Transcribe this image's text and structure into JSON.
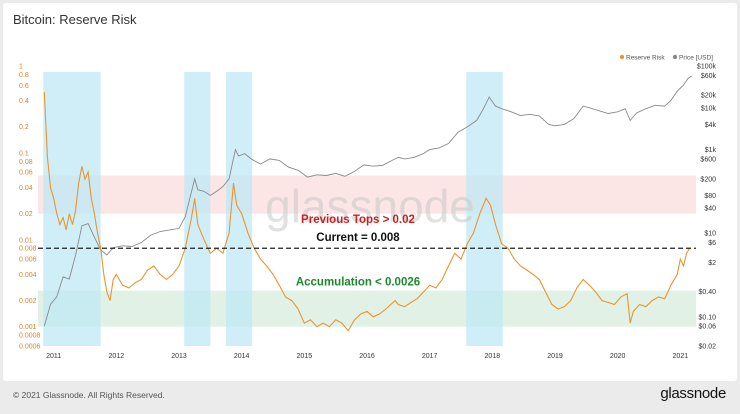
{
  "header": {
    "title": "Bitcoin: Reserve Risk"
  },
  "footer": {
    "copyright": "© 2021 Glassnode. All Rights Reserved.",
    "brand": "glassnode"
  },
  "watermark": "glassnode",
  "colors": {
    "reserve_risk": "#e8962e",
    "price": "#8a8a8a",
    "highlight": "#bfe8f6",
    "top_band": "#f9dcdc",
    "accum_band": "#dcefe2",
    "annotation_tops": "#cc1f1f",
    "annotation_current": "#111111",
    "annotation_accum": "#1e8a2e"
  },
  "chart_data": {
    "type": "line",
    "title": "Bitcoin: Reserve Risk",
    "legend": {
      "placement": "top-right",
      "entries": [
        "Reserve Risk",
        "Price [USD]"
      ]
    },
    "x_ticks": [
      "2011",
      "2012",
      "2013",
      "2014",
      "2015",
      "2016",
      "2017",
      "2018",
      "2019",
      "2020",
      "2021"
    ],
    "left_axis": {
      "scale": "log",
      "range": [
        0.0006,
        1
      ],
      "ticks": [
        "1",
        "0.8",
        "0.6",
        "0.4",
        "0.2",
        "0.1",
        "0.08",
        "0.06",
        "0.04",
        "0.02",
        "0.01",
        "0.008",
        "0.006",
        "0.004",
        "0.002",
        "0.001",
        "0.0008",
        "0.0006"
      ]
    },
    "right_axis": {
      "scale": "log",
      "range": [
        0.02,
        100000
      ],
      "ticks": [
        "$100k",
        "$60k",
        "$20k",
        "$10k",
        "$4k",
        "$1k",
        "$600",
        "$200",
        "$80",
        "$40",
        "$10",
        "$6",
        "$2",
        "$0.40",
        "$0.10",
        "$0.06",
        "$0.02"
      ]
    },
    "bands": {
      "previous_tops": [
        0.02,
        0.055
      ],
      "accumulation": [
        0.001,
        0.0026
      ],
      "current_level": 0.008
    },
    "highlight_periods": [
      [
        "2010-11",
        "2011-10"
      ],
      [
        "2013-02",
        "2013-07"
      ],
      [
        "2013-10",
        "2014-03"
      ],
      [
        "2017-08",
        "2018-03"
      ]
    ],
    "annotations": {
      "previous_tops": "Previous Tops > 0.02",
      "current": "Current = 0.008",
      "accumulation": "Accumulation < 0.0026"
    },
    "series": [
      {
        "name": "Reserve Risk",
        "axis": "left",
        "points": [
          [
            "2010.85",
            0.5
          ],
          [
            "2010.90",
            0.09
          ],
          [
            "2010.95",
            0.04
          ],
          [
            "2011.00",
            0.03
          ],
          [
            "2011.05",
            0.02
          ],
          [
            "2011.10",
            0.015
          ],
          [
            "2011.15",
            0.018
          ],
          [
            "2011.20",
            0.013
          ],
          [
            "2011.25",
            0.02
          ],
          [
            "2011.30",
            0.015
          ],
          [
            "2011.35",
            0.022
          ],
          [
            "2011.40",
            0.045
          ],
          [
            "2011.45",
            0.07
          ],
          [
            "2011.50",
            0.05
          ],
          [
            "2011.55",
            0.06
          ],
          [
            "2011.60",
            0.03
          ],
          [
            "2011.65",
            0.02
          ],
          [
            "2011.70",
            0.012
          ],
          [
            "2011.75",
            0.008
          ],
          [
            "2011.80",
            0.004
          ],
          [
            "2011.85",
            0.0025
          ],
          [
            "2011.90",
            0.002
          ],
          [
            "2011.95",
            0.0035
          ],
          [
            "2012.00",
            0.004
          ],
          [
            "2012.10",
            0.003
          ],
          [
            "2012.20",
            0.0028
          ],
          [
            "2012.30",
            0.0032
          ],
          [
            "2012.40",
            0.0035
          ],
          [
            "2012.50",
            0.0045
          ],
          [
            "2012.60",
            0.005
          ],
          [
            "2012.70",
            0.004
          ],
          [
            "2012.80",
            0.0035
          ],
          [
            "2012.90",
            0.004
          ],
          [
            "2013.00",
            0.005
          ],
          [
            "2013.10",
            0.008
          ],
          [
            "2013.20",
            0.018
          ],
          [
            "2013.25",
            0.03
          ],
          [
            "2013.30",
            0.015
          ],
          [
            "2013.40",
            0.01
          ],
          [
            "2013.50",
            0.007
          ],
          [
            "2013.60",
            0.008
          ],
          [
            "2013.70",
            0.007
          ],
          [
            "2013.80",
            0.012
          ],
          [
            "2013.87",
            0.045
          ],
          [
            "2013.92",
            0.025
          ],
          [
            "2014.00",
            0.02
          ],
          [
            "2014.10",
            0.012
          ],
          [
            "2014.20",
            0.008
          ],
          [
            "2014.30",
            0.006
          ],
          [
            "2014.40",
            0.005
          ],
          [
            "2014.50",
            0.004
          ],
          [
            "2014.60",
            0.003
          ],
          [
            "2014.70",
            0.0022
          ],
          [
            "2014.80",
            0.002
          ],
          [
            "2014.90",
            0.0016
          ],
          [
            "2015.00",
            0.0011
          ],
          [
            "2015.10",
            0.0012
          ],
          [
            "2015.20",
            0.001
          ],
          [
            "2015.30",
            0.0011
          ],
          [
            "2015.40",
            0.001
          ],
          [
            "2015.50",
            0.0012
          ],
          [
            "2015.60",
            0.0011
          ],
          [
            "2015.70",
            0.0009
          ],
          [
            "2015.80",
            0.0012
          ],
          [
            "2015.90",
            0.0014
          ],
          [
            "2016.00",
            0.0015
          ],
          [
            "2016.10",
            0.0013
          ],
          [
            "2016.20",
            0.0014
          ],
          [
            "2016.30",
            0.0016
          ],
          [
            "2016.45",
            0.002
          ],
          [
            "2016.50",
            0.0018
          ],
          [
            "2016.60",
            0.0017
          ],
          [
            "2016.70",
            0.0019
          ],
          [
            "2016.80",
            0.0021
          ],
          [
            "2016.90",
            0.0025
          ],
          [
            "2017.00",
            0.003
          ],
          [
            "2017.10",
            0.0028
          ],
          [
            "2017.20",
            0.0035
          ],
          [
            "2017.30",
            0.005
          ],
          [
            "2017.40",
            0.007
          ],
          [
            "2017.50",
            0.006
          ],
          [
            "2017.60",
            0.009
          ],
          [
            "2017.70",
            0.012
          ],
          [
            "2017.80",
            0.02
          ],
          [
            "2017.90",
            0.03
          ],
          [
            "2017.97",
            0.025
          ],
          [
            "2018.05",
            0.015
          ],
          [
            "2018.15",
            0.009
          ],
          [
            "2018.25",
            0.008
          ],
          [
            "2018.35",
            0.006
          ],
          [
            "2018.45",
            0.005
          ],
          [
            "2018.55",
            0.0045
          ],
          [
            "2018.65",
            0.004
          ],
          [
            "2018.75",
            0.0035
          ],
          [
            "2018.85",
            0.0025
          ],
          [
            "2018.95",
            0.0018
          ],
          [
            "2019.05",
            0.0016
          ],
          [
            "2019.15",
            0.0017
          ],
          [
            "2019.25",
            0.002
          ],
          [
            "2019.35",
            0.0028
          ],
          [
            "2019.45",
            0.0035
          ],
          [
            "2019.55",
            0.003
          ],
          [
            "2019.65",
            0.0025
          ],
          [
            "2019.75",
            0.002
          ],
          [
            "2019.85",
            0.0019
          ],
          [
            "2019.95",
            0.0018
          ],
          [
            "2020.05",
            0.0022
          ],
          [
            "2020.15",
            0.0024
          ],
          [
            "2020.20",
            0.0011
          ],
          [
            "2020.25",
            0.0015
          ],
          [
            "2020.35",
            0.0018
          ],
          [
            "2020.45",
            0.0017
          ],
          [
            "2020.55",
            0.002
          ],
          [
            "2020.65",
            0.0022
          ],
          [
            "2020.75",
            0.0021
          ],
          [
            "2020.85",
            0.003
          ],
          [
            "2020.95",
            0.004
          ],
          [
            "2021.00",
            0.006
          ],
          [
            "2021.05",
            0.005
          ],
          [
            "2021.10",
            0.007
          ],
          [
            "2021.15",
            0.008
          ]
        ]
      },
      {
        "name": "Price [USD]",
        "axis": "right",
        "points": [
          [
            "2010.85",
            0.06
          ],
          [
            "2010.95",
            0.2
          ],
          [
            "2011.05",
            0.3
          ],
          [
            "2011.15",
            0.9
          ],
          [
            "2011.25",
            0.8
          ],
          [
            "2011.35",
            3
          ],
          [
            "2011.45",
            15
          ],
          [
            "2011.55",
            17
          ],
          [
            "2011.65",
            8
          ],
          [
            "2011.75",
            4
          ],
          [
            "2011.85",
            3
          ],
          [
            "2011.95",
            4.5
          ],
          [
            "2012.10",
            5
          ],
          [
            "2012.25",
            4.8
          ],
          [
            "2012.40",
            6
          ],
          [
            "2012.55",
            9
          ],
          [
            "2012.70",
            11
          ],
          [
            "2012.85",
            12
          ],
          [
            "2013.00",
            13
          ],
          [
            "2013.10",
            25
          ],
          [
            "2013.25",
            200
          ],
          [
            "2013.30",
            110
          ],
          [
            "2013.40",
            100
          ],
          [
            "2013.50",
            80
          ],
          [
            "2013.60",
            100
          ],
          [
            "2013.70",
            130
          ],
          [
            "2013.80",
            200
          ],
          [
            "2013.90",
            1000
          ],
          [
            "2013.95",
            700
          ],
          [
            "2014.05",
            800
          ],
          [
            "2014.15",
            600
          ],
          [
            "2014.30",
            450
          ],
          [
            "2014.45",
            600
          ],
          [
            "2014.60",
            550
          ],
          [
            "2014.75",
            380
          ],
          [
            "2014.90",
            320
          ],
          [
            "2015.05",
            220
          ],
          [
            "2015.20",
            250
          ],
          [
            "2015.35",
            240
          ],
          [
            "2015.50",
            270
          ],
          [
            "2015.65",
            230
          ],
          [
            "2015.80",
            300
          ],
          [
            "2015.95",
            430
          ],
          [
            "2016.10",
            400
          ],
          [
            "2016.25",
            420
          ],
          [
            "2016.40",
            550
          ],
          [
            "2016.50",
            650
          ],
          [
            "2016.60",
            600
          ],
          [
            "2016.75",
            650
          ],
          [
            "2016.90",
            800
          ],
          [
            "2017.00",
            1000
          ],
          [
            "2017.15",
            1100
          ],
          [
            "2017.30",
            1400
          ],
          [
            "2017.45",
            2600
          ],
          [
            "2017.60",
            3500
          ],
          [
            "2017.75",
            5000
          ],
          [
            "2017.85",
            9000
          ],
          [
            "2017.95",
            18000
          ],
          [
            "2018.05",
            11000
          ],
          [
            "2018.15",
            9500
          ],
          [
            "2018.30",
            8000
          ],
          [
            "2018.45",
            6500
          ],
          [
            "2018.60",
            7000
          ],
          [
            "2018.75",
            6400
          ],
          [
            "2018.90",
            4000
          ],
          [
            "2019.00",
            3700
          ],
          [
            "2019.15",
            4000
          ],
          [
            "2019.30",
            5500
          ],
          [
            "2019.45",
            11000
          ],
          [
            "2019.55",
            10000
          ],
          [
            "2019.70",
            8500
          ],
          [
            "2019.85",
            7300
          ],
          [
            "2020.00",
            8000
          ],
          [
            "2020.12",
            9500
          ],
          [
            "2020.20",
            5000
          ],
          [
            "2020.30",
            7500
          ],
          [
            "2020.45",
            9500
          ],
          [
            "2020.60",
            11500
          ],
          [
            "2020.75",
            11000
          ],
          [
            "2020.85",
            15000
          ],
          [
            "2020.95",
            25000
          ],
          [
            "2021.05",
            35000
          ],
          [
            "2021.12",
            50000
          ],
          [
            "2021.18",
            58000
          ]
        ]
      }
    ]
  }
}
